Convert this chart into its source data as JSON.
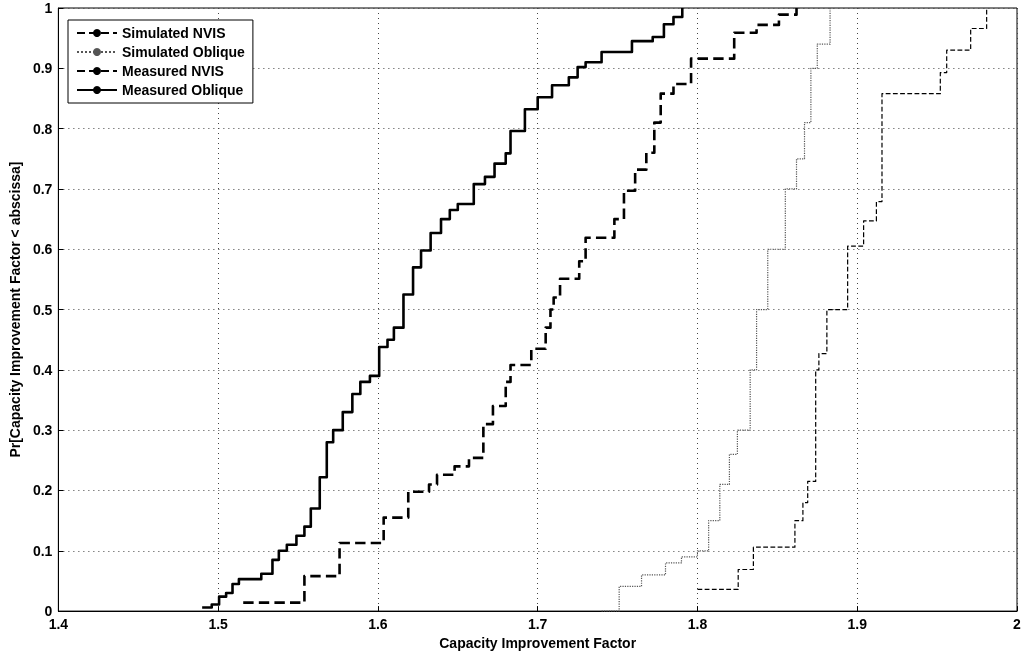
{
  "chart_data": {
    "type": "step",
    "xlabel": "Capacity Improvement Factor",
    "ylabel": "Pr[Capacity Improvement Factor < abscissa]",
    "xlim": [
      1.4,
      2
    ],
    "xticks": [
      1.4,
      1.5,
      1.6,
      1.7,
      1.8,
      1.9,
      2
    ],
    "ylim": [
      0,
      1
    ],
    "yticks": [
      0,
      0.1,
      0.2,
      0.3,
      0.4,
      0.5,
      0.6,
      0.7,
      0.8,
      0.9,
      1
    ],
    "grid": true,
    "legend": "top left",
    "marker": "none",
    "series": [
      {
        "name": "Simulated NVIS",
        "color": "#000000",
        "line_style": "dashed",
        "x": [
          1.8,
          1.8255,
          1.835,
          1.861,
          1.866,
          1.869,
          1.874,
          1.876,
          1.881,
          1.894,
          1.904,
          1.912,
          1.9155,
          1.952,
          1.956,
          1.971,
          1.981
        ],
        "values": [
          0.036,
          0.069,
          0.106,
          0.15,
          0.18,
          0.215,
          0.4,
          0.427,
          0.5,
          0.605,
          0.647,
          0.679,
          0.858,
          0.893,
          0.93,
          0.966,
          1.0
        ]
      },
      {
        "name": "Simulated Oblique",
        "color": "#555555",
        "line_style": "dotted",
        "x": [
          1.74,
          1.751,
          1.765,
          1.78,
          1.79,
          1.8,
          1.807,
          1.814,
          1.82,
          1.825,
          1.833,
          1.837,
          1.844,
          1.855,
          1.862,
          1.867,
          1.871,
          1.875,
          1.883
        ],
        "values": [
          0.0,
          0.041,
          0.06,
          0.08,
          0.09,
          0.1,
          0.15,
          0.21,
          0.26,
          0.3,
          0.4,
          0.5,
          0.6,
          0.7,
          0.75,
          0.81,
          0.9,
          0.94,
          1.0
        ]
      },
      {
        "name": "Measured NVIS",
        "color": "#000000",
        "line_style": "dashed",
        "x": [
          1.5157,
          1.554,
          1.576,
          1.6036,
          1.619,
          1.632,
          1.637,
          1.648,
          1.657,
          1.666,
          1.672,
          1.68,
          1.683,
          1.696,
          1.705,
          1.708,
          1.71,
          1.714,
          1.726,
          1.73,
          1.748,
          1.754,
          1.761,
          1.768,
          1.773,
          1.777,
          1.785,
          1.796,
          1.823,
          1.837,
          1.851,
          1.862
        ],
        "values": [
          0.014,
          0.058,
          0.113,
          0.155,
          0.198,
          0.21,
          0.226,
          0.24,
          0.254,
          0.31,
          0.34,
          0.38,
          0.408,
          0.435,
          0.47,
          0.5,
          0.52,
          0.551,
          0.58,
          0.619,
          0.65,
          0.697,
          0.732,
          0.76,
          0.81,
          0.858,
          0.874,
          0.916,
          0.959,
          0.972,
          0.989,
          1.0
        ]
      },
      {
        "name": "Measured Oblique",
        "color": "#000000",
        "line_style": "solid",
        "x": [
          1.49,
          1.496,
          1.5006,
          1.505,
          1.509,
          1.513,
          1.527,
          1.534,
          1.538,
          1.543,
          1.549,
          1.554,
          1.558,
          1.5636,
          1.568,
          1.572,
          1.578,
          1.584,
          1.589,
          1.595,
          1.6008,
          1.606,
          1.61,
          1.616,
          1.622,
          1.627,
          1.633,
          1.6395,
          1.645,
          1.65,
          1.66,
          1.667,
          1.673,
          1.68,
          1.683,
          1.692,
          1.7,
          1.709,
          1.7195,
          1.725,
          1.73,
          1.74,
          1.759,
          1.772,
          1.779,
          1.785,
          1.7905
        ],
        "values": [
          0.006,
          0.011,
          0.024,
          0.03,
          0.045,
          0.053,
          0.062,
          0.085,
          0.1,
          0.11,
          0.125,
          0.14,
          0.17,
          0.222,
          0.28,
          0.3,
          0.33,
          0.36,
          0.38,
          0.39,
          0.438,
          0.45,
          0.47,
          0.525,
          0.57,
          0.598,
          0.627,
          0.65,
          0.665,
          0.675,
          0.708,
          0.72,
          0.742,
          0.759,
          0.796,
          0.832,
          0.852,
          0.872,
          0.885,
          0.902,
          0.91,
          0.927,
          0.945,
          0.952,
          0.973,
          0.985,
          1.0
        ]
      }
    ]
  }
}
